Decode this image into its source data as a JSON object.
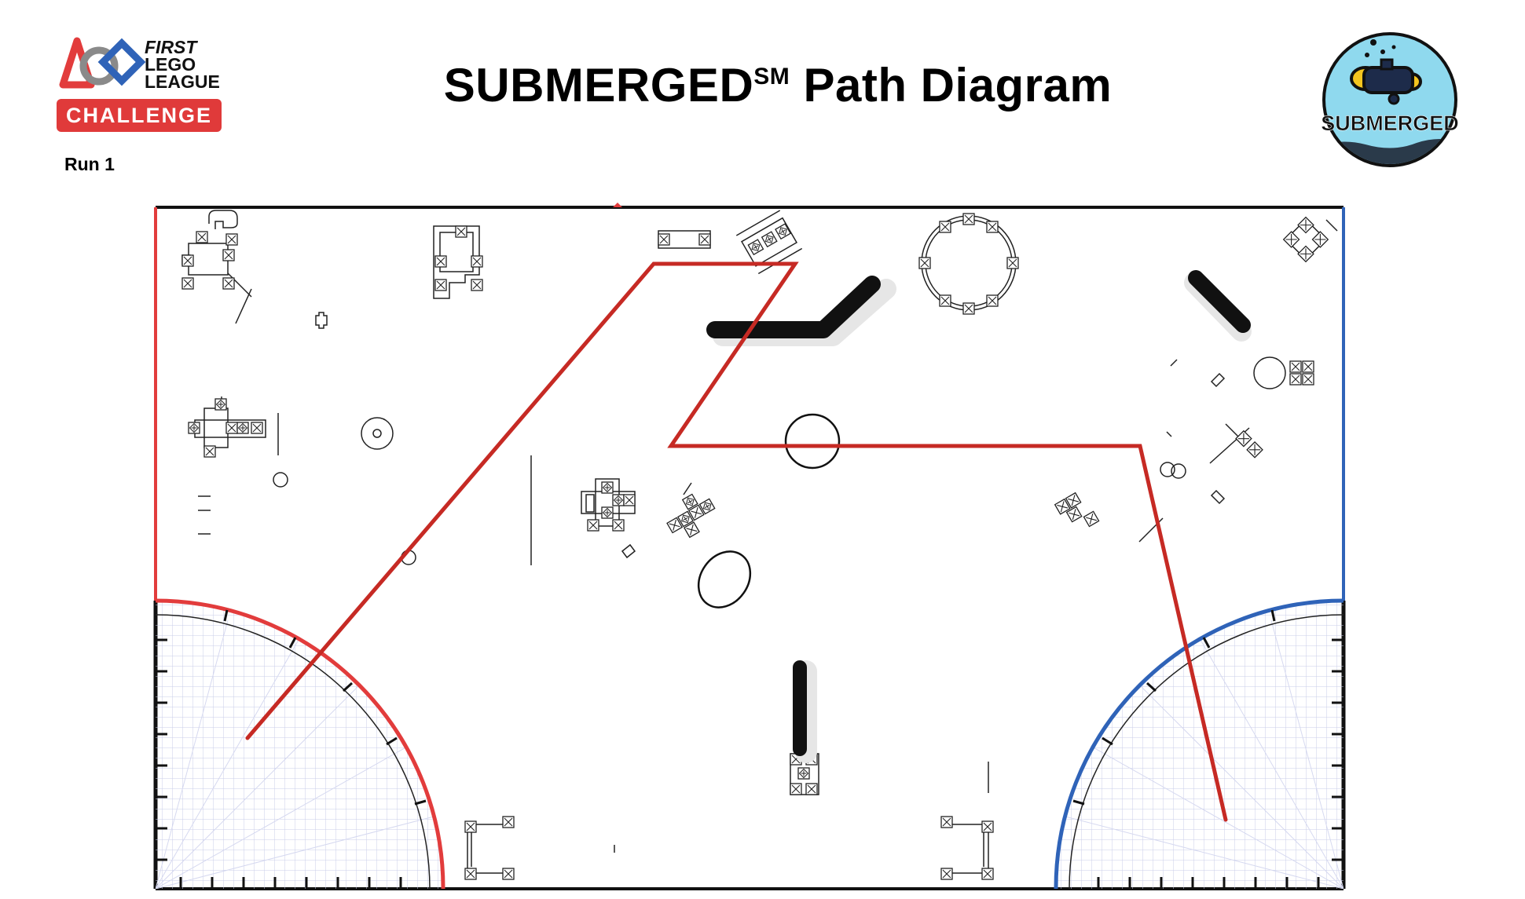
{
  "header": {
    "title_main": "SUBMERGED",
    "title_mark": "SM",
    "title_rest": " Path Diagram",
    "run_label": "Run 1"
  },
  "logo_left": {
    "line1": "FIRST",
    "line2": "LEGO",
    "line3": "LEAGUE",
    "badge": "CHALLENGE"
  },
  "logo_right": {
    "text": "SUBMERGED"
  },
  "colors": {
    "path": "#c62a24",
    "left_home": "#e23c3c",
    "right_home": "#2f63b8",
    "badge": "#e03a3a",
    "emblem_fill": "#8fd9ee",
    "grid": "#c9cde9"
  },
  "icons": [
    "first-lego-league-logo-icon",
    "submerged-emblem-icon"
  ]
}
